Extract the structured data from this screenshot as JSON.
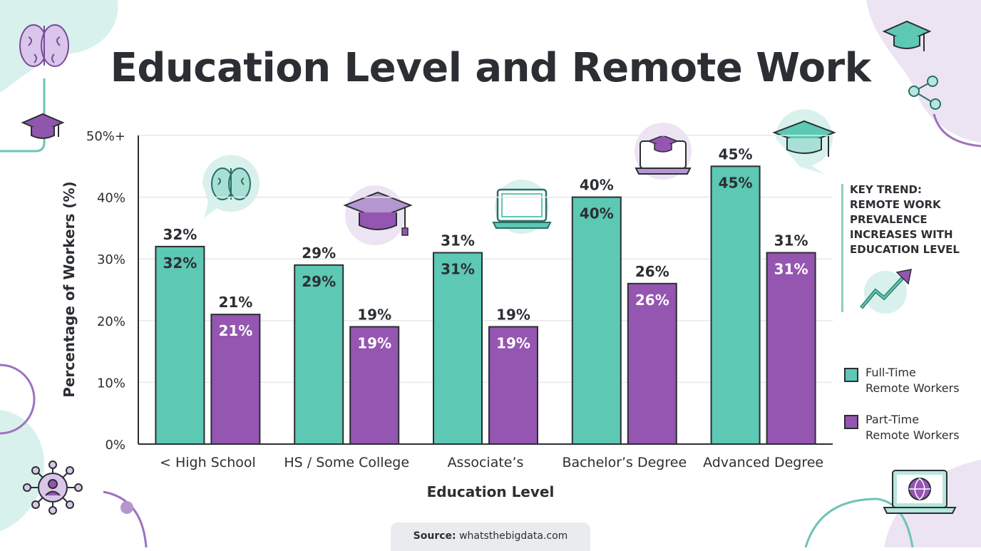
{
  "title": "Education Level and Remote Work",
  "chart_data": {
    "type": "bar",
    "title": "Education Level and Remote Work",
    "xlabel": "Education Level",
    "ylabel": "Percentage of Workers (%)",
    "ylim": [
      0,
      50
    ],
    "y_ticks": [
      "0%",
      "10%",
      "20%",
      "30%",
      "40%",
      "50%+"
    ],
    "grid": true,
    "legend_position": "right",
    "categories": [
      "< High School",
      "HS / Some College",
      "Associate’s",
      "Bachelor’s Degree",
      "Advanced Degree"
    ],
    "series": [
      {
        "name": "Full-Time Remote Workers",
        "color": "#5dc8b4",
        "values": [
          32,
          29,
          31,
          40,
          45
        ],
        "labels": [
          "32%",
          "29%",
          "31%",
          "40%",
          "45%"
        ]
      },
      {
        "name": "Part-Time Remote Workers",
        "color": "#9456b0",
        "values": [
          21,
          19,
          19,
          26,
          31
        ],
        "labels": [
          "21%",
          "19%",
          "19%",
          "26%",
          "31%"
        ]
      }
    ]
  },
  "legend": {
    "full_time": {
      "line1": "Full-Time",
      "line2": "Remote Workers"
    },
    "part_time": {
      "line1": "Part-Time",
      "line2": "Remote Workers"
    }
  },
  "key_trend": {
    "lines": [
      "KEY TREND:",
      "REMOTE WORK",
      "PREVALENCE",
      "INCREASES WITH",
      "EDUCATION LEVEL"
    ]
  },
  "source": {
    "label": "Source:",
    "value": "whatsthebigdata.com"
  },
  "icons": [
    "brain-icon",
    "graduation-cap-icon",
    "laptop-icon",
    "network-icon",
    "globe-laptop-icon",
    "trend-arrow-icon"
  ],
  "colors": {
    "teal": "#5dc8b4",
    "purple": "#9456b0",
    "text": "#2b2f33"
  }
}
